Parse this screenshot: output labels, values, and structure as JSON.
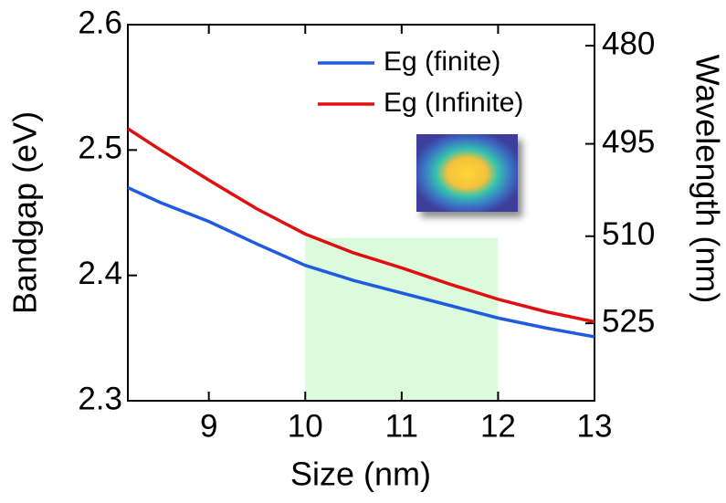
{
  "chart_data": {
    "type": "line",
    "x_label": "Size (nm)",
    "y_label": "Bandgap (eV)",
    "y2_label": "Wavelength (nm)",
    "x": [
      8.16,
      8.5,
      9,
      9.5,
      10,
      10.5,
      11,
      11.5,
      12,
      12.5,
      13
    ],
    "series": [
      {
        "name": "Eg (finite)",
        "color": "#1f5be0",
        "values": [
          2.47,
          2.458,
          2.443,
          2.425,
          2.408,
          2.396,
          2.386,
          2.376,
          2.366,
          2.358,
          2.351
        ]
      },
      {
        "name": "Eg (Infinite)",
        "color": "#e01010",
        "values": [
          2.517,
          2.5,
          2.476,
          2.453,
          2.433,
          2.418,
          2.406,
          2.393,
          2.381,
          2.371,
          2.363
        ]
      }
    ],
    "xlim": [
      8.16,
      13
    ],
    "xticks": [
      9,
      10,
      11,
      12,
      13
    ],
    "ylim": [
      2.3,
      2.6
    ],
    "yticks": [
      2.3,
      2.4,
      2.5,
      2.6
    ],
    "y2scale": "reciprocal",
    "y2lim": [
      539.1,
      476.9
    ],
    "y2ticks": [
      480,
      495,
      510,
      525
    ],
    "highlight": {
      "x": [
        10,
        12
      ],
      "y": [
        2.3,
        2.43
      ],
      "color": "#dcfadc"
    },
    "legend": "upper right"
  }
}
